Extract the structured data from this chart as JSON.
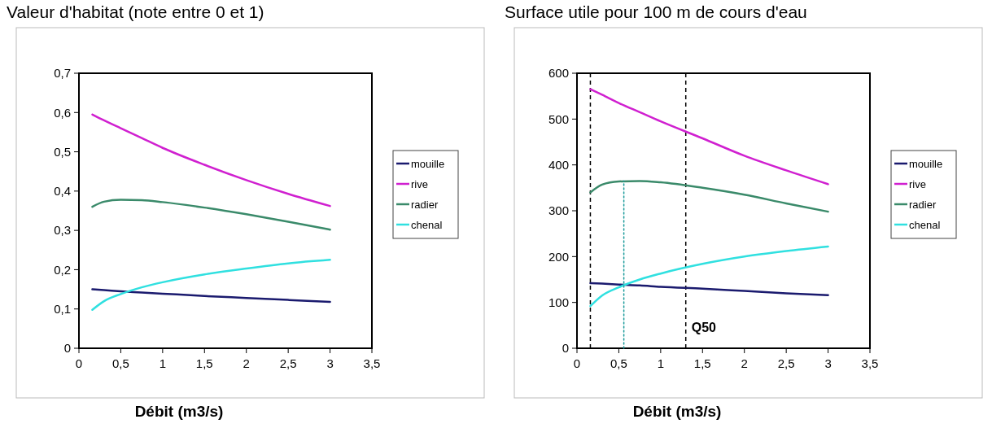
{
  "chart_data": [
    {
      "type": "line",
      "title": "Valeur d'habitat (note entre 0 et 1)",
      "xlabel": "Débit (m3/s)",
      "x": [
        0.16,
        0.3,
        0.5,
        0.75,
        1,
        1.5,
        2,
        2.5,
        3
      ],
      "series": [
        {
          "name": "mouille",
          "color": "#1a1a6e",
          "values": [
            0.15,
            0.148,
            0.145,
            0.142,
            0.139,
            0.133,
            0.128,
            0.123,
            0.118
          ]
        },
        {
          "name": "rive",
          "color": "#d020d0",
          "values": [
            0.595,
            0.58,
            0.56,
            0.535,
            0.51,
            0.467,
            0.428,
            0.393,
            0.362
          ]
        },
        {
          "name": "radier",
          "color": "#3a8a6a",
          "values": [
            0.36,
            0.373,
            0.378,
            0.377,
            0.372,
            0.358,
            0.341,
            0.322,
            0.302
          ]
        },
        {
          "name": "chenal",
          "color": "#30e0e0",
          "values": [
            0.098,
            0.12,
            0.138,
            0.155,
            0.168,
            0.188,
            0.203,
            0.216,
            0.225
          ]
        }
      ],
      "xlim": [
        0,
        3.5
      ],
      "xticks": [
        0,
        {
          "value": 0.5,
          "label": "0,5"
        },
        1,
        {
          "value": 1.5,
          "label": "1,5"
        },
        2,
        {
          "value": 2.5,
          "label": "2,5"
        },
        3,
        {
          "value": 3.5,
          "label": "3,5"
        }
      ],
      "ylim": [
        0,
        0.7
      ],
      "yticks": [
        0,
        {
          "value": 0.1,
          "label": "0,1"
        },
        {
          "value": 0.2,
          "label": "0,2"
        },
        {
          "value": 0.3,
          "label": "0,3"
        },
        {
          "value": 0.4,
          "label": "0,4"
        },
        {
          "value": 0.5,
          "label": "0,5"
        },
        {
          "value": 0.6,
          "label": "0,6"
        },
        {
          "value": 0.7,
          "label": "0,7"
        }
      ],
      "legend": "right"
    },
    {
      "type": "line",
      "title": "Surface utile pour 100 m de cours d'eau",
      "xlabel": "Débit (m3/s)",
      "x": [
        0.16,
        0.3,
        0.5,
        0.75,
        1,
        1.5,
        2,
        2.5,
        3
      ],
      "series": [
        {
          "name": "mouille",
          "color": "#1a1a6e",
          "values": [
            142,
            141,
            139,
            137,
            134,
            130,
            125,
            120,
            116
          ]
        },
        {
          "name": "rive",
          "color": "#d020d0",
          "values": [
            565,
            553,
            535,
            515,
            495,
            458,
            420,
            388,
            358
          ]
        },
        {
          "name": "radier",
          "color": "#3a8a6a",
          "values": [
            340,
            357,
            364,
            365,
            362,
            350,
            335,
            316,
            298
          ]
        },
        {
          "name": "chenal",
          "color": "#30e0e0",
          "values": [
            92,
            115,
            133,
            150,
            163,
            184,
            200,
            212,
            222
          ]
        },
        {
          "color": "#1a9a9a",
          "x": [
            0.56,
            0.56
          ],
          "values": [
            0,
            365
          ],
          "line_style": "dotted"
        }
      ],
      "ref_lines": [
        {
          "axis": "x",
          "value": 0.16,
          "label": null,
          "color": "#000000",
          "line_style": "dashed"
        },
        {
          "axis": "x",
          "value": 1.3,
          "label": "Q50",
          "color": "#000000",
          "line_style": "dashed"
        }
      ],
      "xlim": [
        0,
        3.5
      ],
      "xticks": [
        0,
        {
          "value": 0.5,
          "label": "0,5"
        },
        1,
        {
          "value": 1.5,
          "label": "1,5"
        },
        2,
        {
          "value": 2.5,
          "label": "2,5"
        },
        3,
        {
          "value": 3.5,
          "label": "3,5"
        }
      ],
      "ylim": [
        0,
        600
      ],
      "yticks": [
        0,
        100,
        200,
        300,
        400,
        500,
        600
      ],
      "legend": "right"
    }
  ]
}
